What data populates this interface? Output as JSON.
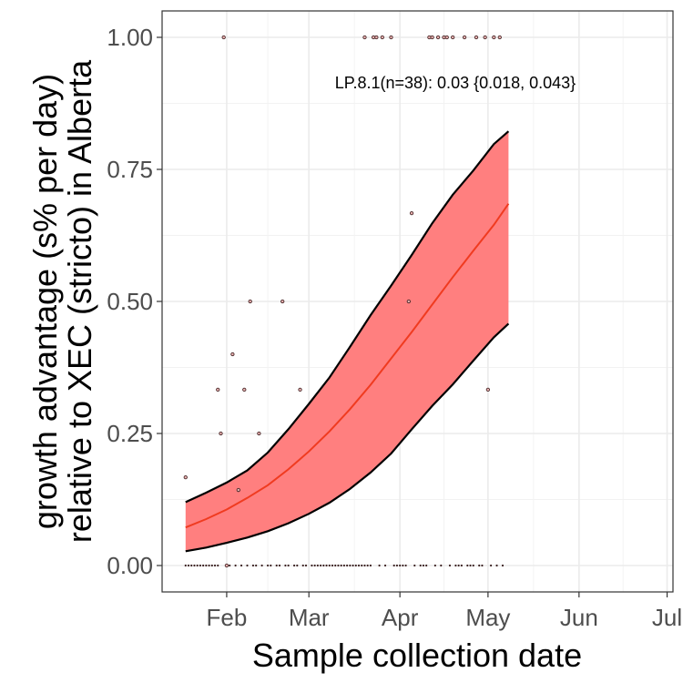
{
  "chart_data": {
    "type": "line",
    "xlabel": "Sample collection date",
    "ylabel_line1": "growth advantage (s% per day)",
    "ylabel_line2": "relative to XEC (stricto) in Alberta",
    "annotation": "LP.8.1(n=38): 0.03 {0.018, 0.043}",
    "xlim": [
      "2025-01-10",
      "2025-07-03"
    ],
    "ylim": [
      -0.05,
      1.05
    ],
    "x_ticks": [
      {
        "date": "2025-02-01",
        "label": "Feb"
      },
      {
        "date": "2025-03-01",
        "label": "Mar"
      },
      {
        "date": "2025-04-01",
        "label": "Apr"
      },
      {
        "date": "2025-05-01",
        "label": "May"
      },
      {
        "date": "2025-06-01",
        "label": "Jun"
      },
      {
        "date": "2025-07-01",
        "label": "Jul"
      }
    ],
    "y_ticks": [
      {
        "value": 0.0,
        "label": "0.00"
      },
      {
        "value": 0.25,
        "label": "0.25"
      },
      {
        "value": 0.5,
        "label": "0.50"
      },
      {
        "value": 0.75,
        "label": "0.75"
      },
      {
        "value": 1.0,
        "label": "1.00"
      }
    ],
    "grid": true,
    "colors": {
      "fit_line": "#f03b20",
      "ribbon_fill": "#ff7f7f",
      "ribbon_border": "#000000",
      "points": "#4a2a2a"
    },
    "series": [
      {
        "type": "line",
        "points": [
          [
            "2025-01-18",
            0.072
          ],
          [
            "2025-01-25",
            0.088
          ],
          [
            "2025-02-01",
            0.106
          ],
          [
            "2025-02-08",
            0.128
          ],
          [
            "2025-02-15",
            0.152
          ],
          [
            "2025-02-22",
            0.182
          ],
          [
            "2025-03-01",
            0.216
          ],
          [
            "2025-03-08",
            0.254
          ],
          [
            "2025-03-15",
            0.296
          ],
          [
            "2025-03-22",
            0.342
          ],
          [
            "2025-03-29",
            0.392
          ],
          [
            "2025-04-05",
            0.442
          ],
          [
            "2025-04-12",
            0.494
          ],
          [
            "2025-04-19",
            0.546
          ],
          [
            "2025-04-26",
            0.596
          ],
          [
            "2025-05-03",
            0.645
          ],
          [
            "2025-05-08",
            0.685
          ]
        ]
      },
      {
        "type": "ribbon",
        "lower": [
          [
            "2025-01-18",
            0.027
          ],
          [
            "2025-01-25",
            0.034
          ],
          [
            "2025-02-01",
            0.043
          ],
          [
            "2025-02-08",
            0.053
          ],
          [
            "2025-02-15",
            0.065
          ],
          [
            "2025-02-22",
            0.08
          ],
          [
            "2025-03-01",
            0.098
          ],
          [
            "2025-03-08",
            0.119
          ],
          [
            "2025-03-15",
            0.145
          ],
          [
            "2025-03-22",
            0.176
          ],
          [
            "2025-03-29",
            0.212
          ],
          [
            "2025-04-05",
            0.258
          ],
          [
            "2025-04-12",
            0.302
          ],
          [
            "2025-04-19",
            0.343
          ],
          [
            "2025-04-26",
            0.388
          ],
          [
            "2025-05-03",
            0.432
          ],
          [
            "2025-05-08",
            0.458
          ]
        ],
        "upper": [
          [
            "2025-01-18",
            0.12
          ],
          [
            "2025-01-25",
            0.138
          ],
          [
            "2025-02-01",
            0.157
          ],
          [
            "2025-02-08",
            0.18
          ],
          [
            "2025-02-15",
            0.214
          ],
          [
            "2025-02-22",
            0.258
          ],
          [
            "2025-03-01",
            0.306
          ],
          [
            "2025-03-08",
            0.356
          ],
          [
            "2025-03-15",
            0.414
          ],
          [
            "2025-03-22",
            0.474
          ],
          [
            "2025-03-29",
            0.53
          ],
          [
            "2025-04-05",
            0.588
          ],
          [
            "2025-04-12",
            0.648
          ],
          [
            "2025-04-19",
            0.702
          ],
          [
            "2025-04-26",
            0.748
          ],
          [
            "2025-05-03",
            0.798
          ],
          [
            "2025-05-08",
            0.822
          ]
        ]
      },
      {
        "type": "scatter",
        "points": [
          [
            "2025-01-18",
            0.167
          ],
          [
            "2025-01-29",
            0.333
          ],
          [
            "2025-01-30",
            0.25
          ],
          [
            "2025-01-31",
            1.0
          ],
          [
            "2025-02-01",
            0.0
          ],
          [
            "2025-02-03",
            0.4
          ],
          [
            "2025-02-05",
            0.143
          ],
          [
            "2025-02-07",
            0.333
          ],
          [
            "2025-02-09",
            0.5
          ],
          [
            "2025-02-12",
            0.25
          ],
          [
            "2025-02-20",
            0.5
          ],
          [
            "2025-02-26",
            0.333
          ],
          [
            "2025-03-20",
            1.0
          ],
          [
            "2025-03-23",
            1.0
          ],
          [
            "2025-03-24",
            1.0
          ],
          [
            "2025-03-26",
            1.0
          ],
          [
            "2025-03-29",
            1.0
          ],
          [
            "2025-04-04",
            0.5
          ],
          [
            "2025-04-05",
            0.667
          ],
          [
            "2025-04-11",
            1.0
          ],
          [
            "2025-04-12",
            1.0
          ],
          [
            "2025-04-14",
            1.0
          ],
          [
            "2025-04-16",
            1.0
          ],
          [
            "2025-04-17",
            1.0
          ],
          [
            "2025-04-19",
            1.0
          ],
          [
            "2025-04-23",
            1.0
          ],
          [
            "2025-04-27",
            1.0
          ],
          [
            "2025-04-30",
            1.0
          ],
          [
            "2025-05-01",
            0.333
          ],
          [
            "2025-05-03",
            1.0
          ],
          [
            "2025-05-05",
            1.0
          ]
        ]
      },
      {
        "type": "rug",
        "y": 0.0,
        "dates": [
          "2025-01-18",
          "2025-01-19",
          "2025-01-20",
          "2025-01-21",
          "2025-01-22",
          "2025-01-23",
          "2025-01-24",
          "2025-01-25",
          "2025-01-26",
          "2025-01-27",
          "2025-01-28",
          "2025-01-29",
          "2025-02-02",
          "2025-02-04",
          "2025-02-06",
          "2025-02-08",
          "2025-02-10",
          "2025-02-11",
          "2025-02-13",
          "2025-02-15",
          "2025-02-16",
          "2025-02-18",
          "2025-02-19",
          "2025-02-21",
          "2025-02-22",
          "2025-02-24",
          "2025-02-25",
          "2025-02-27",
          "2025-02-28",
          "2025-03-02",
          "2025-03-03",
          "2025-03-04",
          "2025-03-05",
          "2025-03-06",
          "2025-03-07",
          "2025-03-08",
          "2025-03-09",
          "2025-03-10",
          "2025-03-11",
          "2025-03-12",
          "2025-03-13",
          "2025-03-14",
          "2025-03-15",
          "2025-03-16",
          "2025-03-17",
          "2025-03-18",
          "2025-03-19",
          "2025-03-20",
          "2025-03-21",
          "2025-03-22",
          "2025-03-25",
          "2025-03-27",
          "2025-03-30",
          "2025-03-31",
          "2025-04-01",
          "2025-04-02",
          "2025-04-03",
          "2025-04-06",
          "2025-04-08",
          "2025-04-09",
          "2025-04-10",
          "2025-04-13",
          "2025-04-15",
          "2025-04-18",
          "2025-04-20",
          "2025-04-21",
          "2025-04-22",
          "2025-04-24",
          "2025-04-25",
          "2025-04-26",
          "2025-04-28",
          "2025-04-29",
          "2025-05-02",
          "2025-05-04",
          "2025-05-06"
        ]
      }
    ]
  }
}
